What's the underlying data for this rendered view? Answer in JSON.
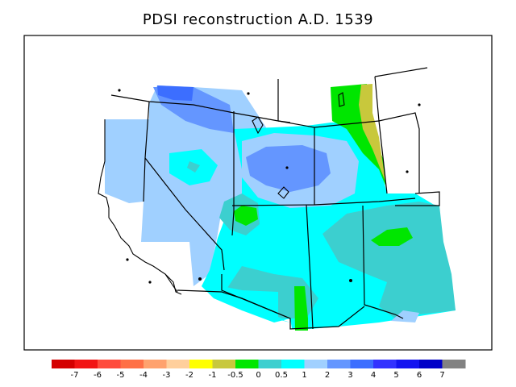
{
  "title": "PDSI reconstruction A.D. 1539",
  "colorbar": {
    "colors": [
      "#d40000",
      "#f21414",
      "#ff4b3c",
      "#ff7046",
      "#ffa26e",
      "#ffcf9c",
      "#ffff00",
      "#c8c83c",
      "#00e600",
      "#3ccfcf",
      "#00ffff",
      "#a0d0ff",
      "#6496ff",
      "#3c6eff",
      "#3232ff",
      "#1414f0",
      "#0000c8",
      "#828282"
    ],
    "labels": [
      "-7",
      "-6",
      "-5",
      "-4",
      "-3",
      "-2",
      "-1",
      "-0.5",
      "0",
      "0.5",
      "1",
      "2",
      "3",
      "4",
      "5",
      "6",
      "7"
    ]
  },
  "legend_classes": {
    "wet_light": "#a0d0ff",
    "wet_medium": "#6496ff",
    "wet_strong": "#3c6eff",
    "near_normal": "#00ffff",
    "slightly_wet": "#3ccfcf",
    "normal": "#00e600",
    "slightly_dry": "#c8c83c"
  }
}
